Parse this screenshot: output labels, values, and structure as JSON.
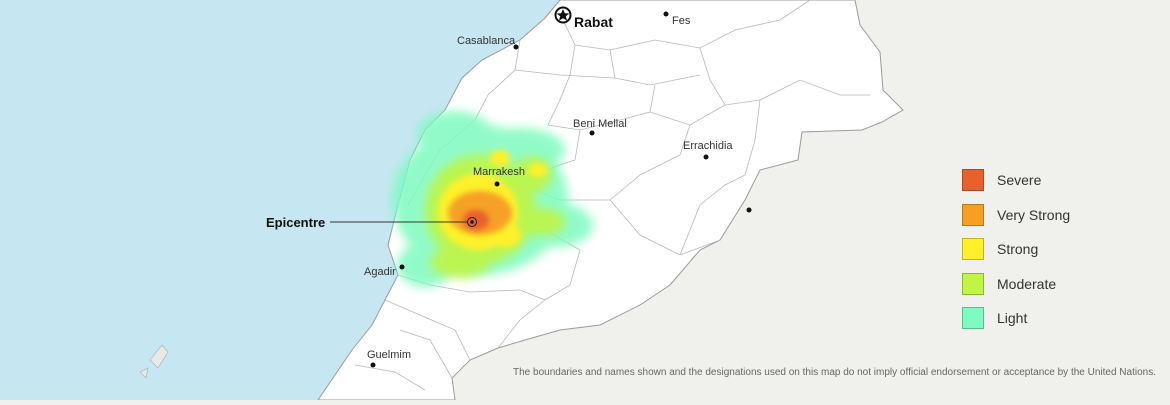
{
  "colors": {
    "sea": "#c6e6f1",
    "land": "#ffffff",
    "outside": "#f0f0ec",
    "border": "#9b9b9b",
    "intensity": {
      "severe": "#e8602a",
      "very_strong": "#f5a025",
      "strong": "#fff02a",
      "moderate": "#c0f545",
      "light": "#7dfbc0"
    }
  },
  "map": {
    "cities": {
      "rabat": "Rabat",
      "fes": "Fes",
      "casablanca": "Casablanca",
      "beni_mellal": "Beni Mellal",
      "errachidia": "Errachidia",
      "marrakesh": "Marrakesh",
      "agadir": "Agadir",
      "guelmim": "Guelmim"
    },
    "epicentre_label": "Epicentre"
  },
  "legend": {
    "items": [
      {
        "label": "Severe",
        "color": "#e8602a"
      },
      {
        "label": "Very Strong",
        "color": "#f5a025"
      },
      {
        "label": "Strong",
        "color": "#fff02a"
      },
      {
        "label": "Moderate",
        "color": "#c0f545"
      },
      {
        "label": "Light",
        "color": "#7dfbc0"
      }
    ]
  },
  "disclaimer": "The boundaries and names shown and the designations used on this map do not imply official endorsement or acceptance by the United Nations."
}
